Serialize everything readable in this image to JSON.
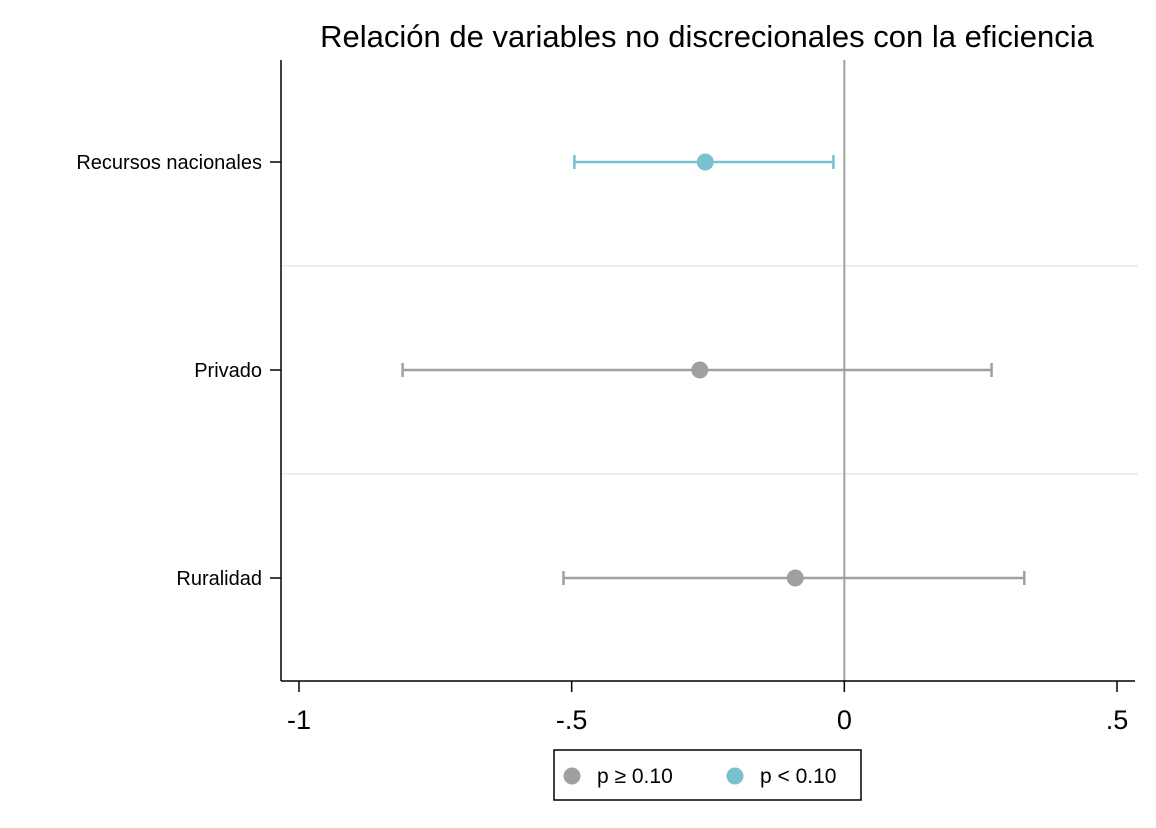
{
  "chart_data": {
    "type": "scatter",
    "title": "Relación de variables no discrecionales con la eficiencia",
    "xlabel": "",
    "ylabel": "",
    "xlim": [
      -1.03,
      0.53
    ],
    "xticks": [
      {
        "value": -1,
        "label": "-1"
      },
      {
        "value": -0.5,
        "label": "-.5"
      },
      {
        "value": 0,
        "label": "0"
      },
      {
        "value": 0.5,
        "label": ".5"
      }
    ],
    "reference_line_x": 0,
    "categories": [
      "Recursos nacionales",
      "Privado",
      "Ruralidad"
    ],
    "points": [
      {
        "category": "Recursos nacionales",
        "estimate": -0.255,
        "ci_low": -0.495,
        "ci_high": -0.02,
        "group": "sig"
      },
      {
        "category": "Privado",
        "estimate": -0.265,
        "ci_low": -0.81,
        "ci_high": 0.27,
        "group": "nonsig"
      },
      {
        "category": "Ruralidad",
        "estimate": -0.09,
        "ci_low": -0.515,
        "ci_high": 0.33,
        "group": "nonsig"
      }
    ],
    "groups": {
      "nonsig": {
        "label": "p ≥ 0.10",
        "color": "#a0a0a0"
      },
      "sig": {
        "label": "p < 0.10",
        "color": "#78c2cf"
      }
    },
    "legend_order": [
      "nonsig",
      "sig"
    ],
    "legend_position": "bottom",
    "grid": false,
    "colors": {
      "axis": "#000000",
      "reference_line": "#a0a0a0",
      "separator": "#e8f0f0"
    }
  }
}
